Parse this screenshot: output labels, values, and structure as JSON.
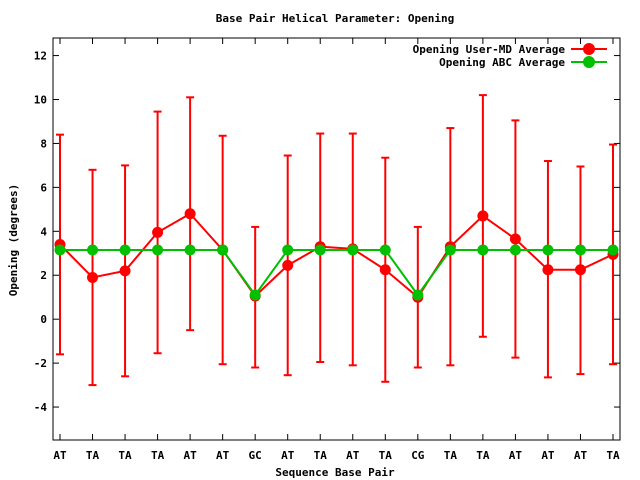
{
  "chart_data": {
    "type": "line",
    "title": "Base Pair Helical Parameter: Opening",
    "xlabel": "Sequence Base Pair",
    "ylabel": "Opening (degrees)",
    "categories": [
      "AT",
      "TA",
      "TA",
      "TA",
      "AT",
      "AT",
      "GC",
      "AT",
      "TA",
      "AT",
      "TA",
      "CG",
      "TA",
      "TA",
      "AT",
      "AT",
      "AT",
      "TA"
    ],
    "ylim": [
      -5.5,
      12.8
    ],
    "yticks": [
      -4,
      -2,
      0,
      2,
      4,
      6,
      8,
      10,
      12
    ],
    "grid": false,
    "legend_position": "top-right",
    "series": [
      {
        "name": "Opening User-MD Average",
        "color": "#ff0000",
        "values": [
          3.4,
          1.9,
          2.2,
          3.95,
          4.8,
          3.15,
          1.05,
          2.45,
          3.3,
          3.2,
          2.25,
          1.0,
          3.3,
          4.7,
          3.65,
          2.25,
          2.25,
          2.95
        ],
        "error_low": [
          -1.6,
          -3.0,
          -2.6,
          -1.55,
          -0.5,
          -2.05,
          -2.2,
          -2.55,
          -1.95,
          -2.1,
          -2.85,
          -2.2,
          -2.1,
          -0.8,
          -1.75,
          -2.65,
          -2.5,
          -2.05
        ],
        "error_high": [
          8.4,
          6.8,
          7.0,
          9.45,
          10.1,
          8.35,
          4.2,
          7.45,
          8.45,
          8.45,
          7.35,
          4.2,
          8.7,
          10.2,
          9.05,
          7.2,
          6.95,
          7.95
        ]
      },
      {
        "name": "Opening ABC Average",
        "color": "#00c000",
        "values": [
          3.15,
          3.15,
          3.15,
          3.15,
          3.15,
          3.15,
          1.1,
          3.15,
          3.15,
          3.15,
          3.15,
          1.1,
          3.15,
          3.15,
          3.15,
          3.15,
          3.15,
          3.15
        ]
      }
    ]
  }
}
